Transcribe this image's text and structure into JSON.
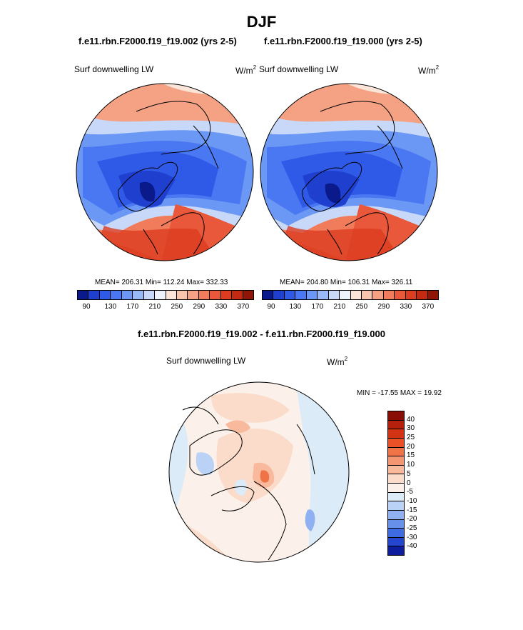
{
  "title": "DJF",
  "panel_left": {
    "case": "f.e11.rbn.F2000.f19_f19.002 (yrs 2-5)",
    "variable": "Surf downwelling LW",
    "unit_base": "W/m",
    "unit_exp": "2",
    "stats": "MEAN= 206.31  Min= 112.24  Max= 332.33"
  },
  "panel_right": {
    "case": "f.e11.rbn.F2000.f19_f19.000 (yrs 2-5)",
    "variable": "Surf downwelling LW",
    "unit_base": "W/m",
    "unit_exp": "2",
    "stats": "MEAN= 204.80  Min= 106.31  Max= 326.11"
  },
  "colorbar_abs": {
    "ticks": [
      "90",
      "130",
      "170",
      "210",
      "250",
      "290",
      "330",
      "370"
    ],
    "colors": [
      "#0a1a8a",
      "#1f3fcf",
      "#2f5ae8",
      "#4a77f2",
      "#6b97f5",
      "#98b8f7",
      "#c7d8f8",
      "#eef3fb",
      "#fbe5d9",
      "#f8c4ad",
      "#f5a284",
      "#f07c5b",
      "#e9583a",
      "#dc3c20",
      "#c22a12",
      "#8f1607"
    ]
  },
  "diff": {
    "title": "f.e11.rbn.F2000.f19_f19.002 - f.e11.rbn.F2000.f19_f19.000",
    "variable": "Surf downwelling LW",
    "unit_base": "W/m",
    "unit_exp": "2",
    "stats": "MIN = -17.55 MAX =  19.92",
    "ticks": [
      "40",
      "30",
      "25",
      "20",
      "15",
      "10",
      "5",
      "0",
      "-5",
      "-10",
      "-15",
      "-20",
      "-25",
      "-30",
      "-40"
    ],
    "colors": [
      "#8a0d05",
      "#b5200c",
      "#d23413",
      "#ea5127",
      "#f07348",
      "#f59673",
      "#f8b99c",
      "#fbdcca",
      "#fbf1ea",
      "#dcebf8",
      "#b9d2f5",
      "#8fb1f1",
      "#6790eb",
      "#3e6be1",
      "#2446cf",
      "#0d1d9c"
    ]
  },
  "colors": {
    "ocean_low": "#2a55e0",
    "warm": "#e9583a"
  },
  "icons": {
    "map_left": "polar-stereographic-map",
    "map_right": "polar-stereographic-map",
    "map_diff": "polar-stereographic-map"
  }
}
